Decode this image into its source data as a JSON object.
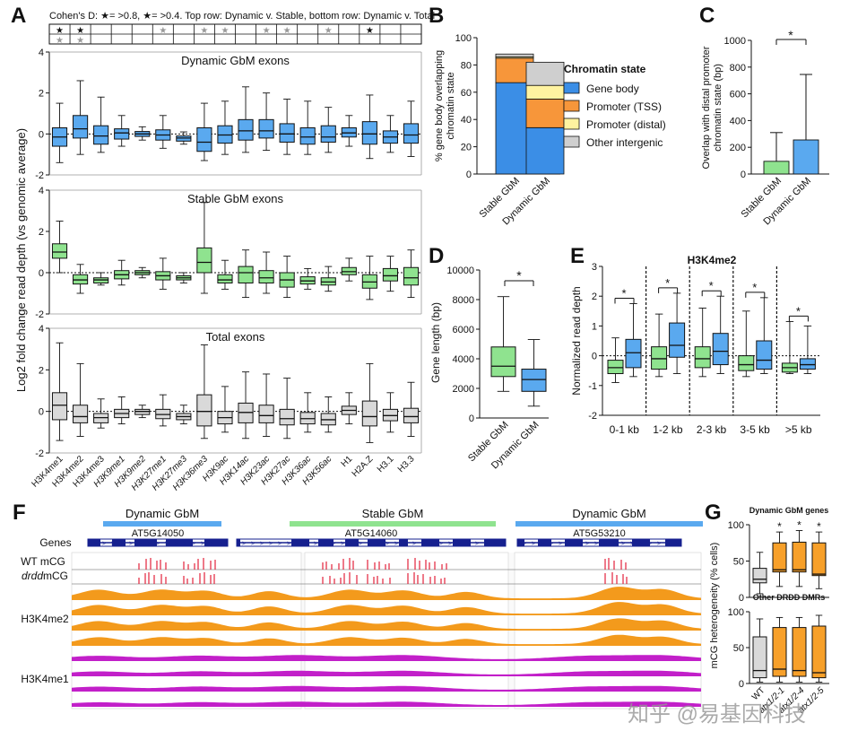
{
  "colors": {
    "dynamic": "#5aa9ef",
    "stable": "#8fe38f",
    "total": "#d9d9d9",
    "orange": "#f7a02a",
    "gene_body": "#3b8ee6",
    "promoter_tss": "#f7963a",
    "promoter_distal": "#fff3a0",
    "other": "#cfcfcf",
    "track_orange": "#f39a1c",
    "track_magenta": "#c21fc9",
    "mcg_red": "#e2213b",
    "gene_blue": "#16208f"
  },
  "panel_labels": {
    "a": "A",
    "b": "B",
    "c": "C",
    "d": "D",
    "e": "E",
    "f": "F",
    "g": "G"
  },
  "panelA": {
    "legend_text": "Cohen's D: ★= >0.8, ★= >0.4. Top row: Dynamic v. Stable, bottom row: Dynamic v. Total",
    "top_row_stars": [
      "★",
      "★",
      "",
      "",
      "",
      "★",
      "",
      "★",
      "★",
      "",
      "★",
      "★",
      "",
      "★",
      "",
      "★",
      "",
      ""
    ],
    "top_row_strong": [
      true,
      true,
      false,
      false,
      false,
      false,
      false,
      false,
      false,
      false,
      false,
      false,
      false,
      false,
      false,
      true,
      false,
      false
    ],
    "bottom_row_stars": [
      "★",
      "★",
      "",
      "",
      "",
      "",
      "",
      "",
      "",
      "",
      "",
      "",
      "",
      "",
      "",
      "",
      "",
      ""
    ],
    "ylabel": "Log2 fold change read depth (vs genomic average)",
    "categories": [
      "H3K4me1",
      "H3K4me2",
      "H3K4me3",
      "H3K9me1",
      "H3K9me2",
      "H3K27me1",
      "H3K27me3",
      "H3K36me3",
      "H3K9ac",
      "H3K14ac",
      "H3K23ac",
      "H3K27ac",
      "H3K36ac",
      "H3K56ac",
      "H1",
      "H2A.Z",
      "H3.1",
      "H3.3"
    ],
    "italic_categories": [
      "H3K9me1",
      "H3K9me2",
      "H3K27me1",
      "H3K27me3",
      "H3K36me3",
      "H3K9ac",
      "H3K14ac",
      "H3K23ac",
      "H3K27ac",
      "H3K36ac",
      "H3K56ac"
    ]
  },
  "chart_data": [
    {
      "id": "A1",
      "type": "box",
      "title": "Dynamic GbM exons",
      "ylim": [
        -2,
        4
      ],
      "yticks": [
        -2,
        0,
        2,
        4
      ],
      "color": "dynamic",
      "boxes": [
        [
          -1.4,
          -0.6,
          -0.15,
          0.3,
          1.5
        ],
        [
          -1.0,
          -0.2,
          0.25,
          0.9,
          2.6
        ],
        [
          -0.9,
          -0.5,
          -0.1,
          0.4,
          1.8
        ],
        [
          -0.6,
          -0.25,
          0.05,
          0.25,
          0.9
        ],
        [
          -0.3,
          -0.12,
          0.0,
          0.12,
          0.35
        ],
        [
          -0.7,
          -0.3,
          -0.05,
          0.2,
          0.9
        ],
        [
          -0.5,
          -0.35,
          -0.2,
          -0.1,
          0.1
        ],
        [
          -1.3,
          -0.85,
          -0.4,
          0.3,
          1.5
        ],
        [
          -1.0,
          -0.45,
          -0.05,
          0.4,
          1.6
        ],
        [
          -0.9,
          -0.3,
          0.15,
          0.7,
          2.3
        ],
        [
          -0.8,
          -0.2,
          0.15,
          0.7,
          2.0
        ],
        [
          -1.0,
          -0.4,
          0.0,
          0.5,
          1.7
        ],
        [
          -1.0,
          -0.5,
          -0.15,
          0.3,
          1.6
        ],
        [
          -0.9,
          -0.4,
          -0.15,
          0.4,
          1.3
        ],
        [
          -0.6,
          -0.15,
          0.05,
          0.3,
          0.9
        ],
        [
          -1.2,
          -0.5,
          0.0,
          0.6,
          1.9
        ],
        [
          -0.9,
          -0.45,
          -0.15,
          0.15,
          0.9
        ],
        [
          -1.1,
          -0.45,
          -0.05,
          0.5,
          1.6
        ]
      ]
    },
    {
      "id": "A2",
      "type": "box",
      "title": "Stable GbM exons",
      "ylim": [
        -2,
        4
      ],
      "yticks": [
        -2,
        0,
        2,
        4
      ],
      "color": "stable",
      "boxes": [
        [
          0.0,
          0.7,
          1.0,
          1.4,
          2.5
        ],
        [
          -1.0,
          -0.55,
          -0.35,
          -0.1,
          0.4
        ],
        [
          -0.6,
          -0.5,
          -0.35,
          -0.25,
          0.0
        ],
        [
          -0.6,
          -0.3,
          -0.1,
          0.1,
          0.6
        ],
        [
          -0.25,
          -0.1,
          0.0,
          0.1,
          0.25
        ],
        [
          -0.8,
          -0.35,
          -0.15,
          0.05,
          0.7
        ],
        [
          -0.5,
          -0.35,
          -0.25,
          -0.15,
          0.0
        ],
        [
          -1.0,
          0.0,
          0.5,
          1.2,
          3.4
        ],
        [
          -0.8,
          -0.5,
          -0.35,
          -0.1,
          0.6
        ],
        [
          -1.2,
          -0.5,
          0.0,
          0.3,
          1.1
        ],
        [
          -1.0,
          -0.5,
          -0.25,
          0.1,
          1.0
        ],
        [
          -1.2,
          -0.7,
          -0.35,
          0.0,
          0.8
        ],
        [
          -0.8,
          -0.55,
          -0.4,
          -0.2,
          0.2
        ],
        [
          -0.9,
          -0.6,
          -0.45,
          -0.25,
          0.3
        ],
        [
          -0.4,
          -0.1,
          0.05,
          0.25,
          0.7
        ],
        [
          -1.3,
          -0.75,
          -0.45,
          -0.1,
          0.8
        ],
        [
          -0.9,
          -0.4,
          -0.15,
          0.2,
          0.8
        ],
        [
          -1.2,
          -0.6,
          -0.25,
          0.25,
          1.1
        ]
      ]
    },
    {
      "id": "A3",
      "type": "box",
      "title": "Total exons",
      "ylim": [
        -2,
        4
      ],
      "yticks": [
        -2,
        0,
        2,
        4
      ],
      "color": "total",
      "boxes": [
        [
          -1.4,
          -0.4,
          0.3,
          0.9,
          3.3
        ],
        [
          -1.2,
          -0.55,
          -0.25,
          0.3,
          2.3
        ],
        [
          -0.8,
          -0.55,
          -0.3,
          -0.1,
          0.6
        ],
        [
          -0.6,
          -0.3,
          -0.1,
          0.1,
          0.7
        ],
        [
          -0.3,
          -0.15,
          0.0,
          0.1,
          0.3
        ],
        [
          -0.7,
          -0.35,
          -0.15,
          0.1,
          0.8
        ],
        [
          -0.6,
          -0.4,
          -0.25,
          -0.1,
          0.3
        ],
        [
          -1.3,
          -0.7,
          0.0,
          0.8,
          3.2
        ],
        [
          -1.0,
          -0.6,
          -0.3,
          0.0,
          1.2
        ],
        [
          -1.3,
          -0.55,
          -0.05,
          0.4,
          1.9
        ],
        [
          -1.2,
          -0.55,
          -0.2,
          0.3,
          1.8
        ],
        [
          -1.3,
          -0.65,
          -0.35,
          0.1,
          1.6
        ],
        [
          -1.0,
          -0.6,
          -0.35,
          -0.05,
          0.9
        ],
        [
          -1.0,
          -0.65,
          -0.4,
          -0.1,
          0.7
        ],
        [
          -0.6,
          -0.15,
          0.05,
          0.25,
          0.9
        ],
        [
          -1.5,
          -0.7,
          -0.25,
          0.5,
          2.3
        ],
        [
          -1.0,
          -0.45,
          -0.2,
          0.1,
          0.9
        ],
        [
          -1.2,
          -0.55,
          -0.25,
          0.15,
          1.4
        ]
      ]
    },
    {
      "id": "B",
      "type": "bar",
      "stacked": true,
      "ylabel": "% gene body overlapping chromatin state",
      "ylim": [
        0,
        100
      ],
      "yticks": [
        0,
        20,
        40,
        60,
        80,
        100
      ],
      "categories": [
        "Stable GbM",
        "Dynamic GbM"
      ],
      "legend_title": "Chromatin state",
      "series": [
        {
          "name": "Gene body",
          "color": "gene_body",
          "values": [
            67,
            34
          ]
        },
        {
          "name": "Promoter (TSS)",
          "color": "promoter_tss",
          "values": [
            18,
            21
          ]
        },
        {
          "name": "Promoter (distal)",
          "color": "promoter_distal",
          "values": [
            1,
            10
          ]
        },
        {
          "name": "Other intergenic",
          "color": "other",
          "values": [
            2,
            17
          ]
        }
      ]
    },
    {
      "id": "C",
      "type": "bar",
      "ylabel": "Overlap with distal promoter chromatin state (bp)",
      "ylim": [
        0,
        1000
      ],
      "yticks": [
        0,
        200,
        400,
        600,
        800,
        1000
      ],
      "categories": [
        "Stable GbM",
        "Dynamic GbM"
      ],
      "values": [
        95,
        255
      ],
      "err_upper": [
        310,
        745
      ],
      "colors": [
        "stable",
        "dynamic"
      ],
      "annotation": "*"
    },
    {
      "id": "D",
      "type": "box",
      "ylabel": "Gene length (bp)",
      "ylim": [
        0,
        10000
      ],
      "yticks": [
        0,
        2000,
        4000,
        6000,
        8000,
        10000
      ],
      "categories": [
        "Stable GbM",
        "Dynamic GbM"
      ],
      "colors": [
        "stable",
        "dynamic"
      ],
      "boxes": [
        [
          1800,
          2800,
          3500,
          4800,
          8200
        ],
        [
          800,
          1800,
          2600,
          3300,
          5300
        ]
      ],
      "annotation": "*"
    },
    {
      "id": "E",
      "type": "box",
      "title": "H3K4me2",
      "ylabel": "Normalized read depth",
      "ylim": [
        -2,
        3
      ],
      "yticks": [
        -2,
        -1,
        0,
        1,
        2,
        3
      ],
      "groups": [
        "0-1 kb",
        "1-2 kb",
        "2-3 kb",
        "3-5 kb",
        ">5 kb"
      ],
      "stable_boxes": [
        [
          -0.9,
          -0.6,
          -0.4,
          -0.15,
          0.6
        ],
        [
          -0.7,
          -0.45,
          -0.1,
          0.3,
          1.4
        ],
        [
          -0.7,
          -0.4,
          -0.1,
          0.3,
          1.6
        ],
        [
          -0.7,
          -0.5,
          -0.3,
          0.0,
          1.5
        ],
        [
          -0.6,
          -0.55,
          -0.4,
          -0.25,
          1.15
        ]
      ],
      "dynamic_boxes": [
        [
          -0.7,
          -0.4,
          0.1,
          0.55,
          1.75
        ],
        [
          -0.6,
          -0.05,
          0.35,
          1.1,
          2.1
        ],
        [
          -0.6,
          -0.3,
          0.15,
          0.75,
          2.0
        ],
        [
          -0.6,
          -0.45,
          -0.15,
          0.5,
          1.95
        ],
        [
          -0.6,
          -0.45,
          -0.3,
          -0.1,
          1.0
        ]
      ],
      "annotation": "*"
    },
    {
      "id": "G1",
      "type": "box",
      "title": "Dynamic GbM genes",
      "ylim": [
        0,
        100
      ],
      "yticks": [
        0,
        50,
        100
      ],
      "categories": [
        "WT",
        "atx1/2-1",
        "atx1/2-4",
        "atx1/2-5"
      ],
      "colors": [
        "total",
        "orange",
        "orange",
        "orange"
      ],
      "boxes": [
        [
          5,
          20,
          25,
          40,
          62
        ],
        [
          15,
          35,
          38,
          75,
          90
        ],
        [
          15,
          35,
          38,
          76,
          92
        ],
        [
          12,
          30,
          32,
          75,
          90
        ]
      ],
      "stars": [
        "",
        "*",
        "*",
        "*"
      ]
    },
    {
      "id": "G2",
      "type": "box",
      "title": "Other DRDD DMRs",
      "ylim": [
        0,
        100
      ],
      "yticks": [
        0,
        50,
        100
      ],
      "categories": [
        "WT",
        "atx1/2-1",
        "atx1/2-4",
        "atx1/2-5"
      ],
      "colors": [
        "total",
        "orange",
        "orange",
        "orange"
      ],
      "boxes": [
        [
          2,
          8,
          18,
          65,
          90
        ],
        [
          2,
          10,
          20,
          78,
          92
        ],
        [
          2,
          10,
          18,
          78,
          92
        ],
        [
          2,
          8,
          15,
          80,
          95
        ]
      ],
      "stars": [
        "",
        "",
        "",
        ""
      ]
    }
  ],
  "panelB": {
    "ylabel": "% gene body overlapping chromatin state"
  },
  "panelC": {
    "ylabel": "Overlap with distal promoter chromatin state (bp)"
  },
  "panelD": {
    "ylabel": "Gene length (bp)"
  },
  "panelE": {
    "ylabel": "Normalized read depth"
  },
  "panelF": {
    "regions": [
      {
        "label": "Dynamic GbM",
        "color": "dynamic"
      },
      {
        "label": "Stable GbM",
        "color": "stable"
      },
      {
        "label": "Dynamic GbM",
        "color": "dynamic"
      }
    ],
    "genes": [
      "AT5G14050",
      "AT5G14060",
      "AT5G53210"
    ],
    "track_labels": {
      "genes": "Genes",
      "wt": "WT mCG",
      "drdd": "drdd",
      "drdd_suffix": " mCG",
      "h3k4me2": "H3K4me2",
      "h3k4me1": "H3K4me1"
    }
  },
  "panelG": {
    "ylabel": "mCG heterogeneity (% cells)"
  },
  "watermark": "知乎 @易基因科技"
}
